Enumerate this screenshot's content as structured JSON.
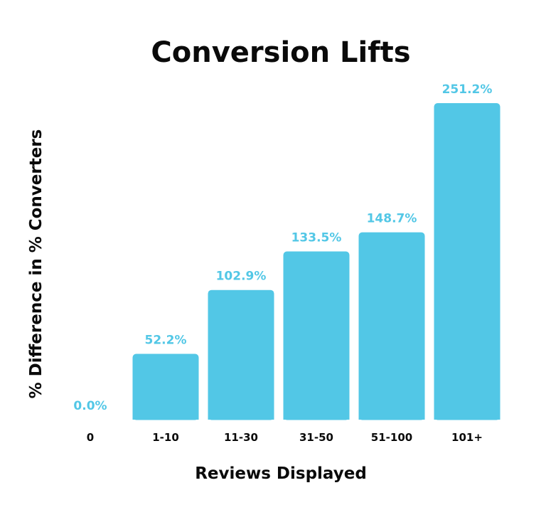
{
  "chart_data": {
    "type": "bar",
    "title": "Conversion Lifts",
    "xlabel": "Reviews Displayed",
    "ylabel": "% Difference in % Converters",
    "categories": [
      "0",
      "1-10",
      "11-30",
      "31-50",
      "51-100",
      "101+"
    ],
    "values": [
      0.0,
      52.2,
      102.9,
      133.5,
      148.7,
      251.2
    ],
    "data_labels": [
      "0.0%",
      "52.2%",
      "102.9%",
      "133.5%",
      "148.7%",
      "251.2%"
    ],
    "ylim": [
      0,
      251.2
    ],
    "grid": false,
    "colors": {
      "bar": "#52c7e6",
      "label": "#52c7e6",
      "text": "#0a0a0a"
    }
  }
}
